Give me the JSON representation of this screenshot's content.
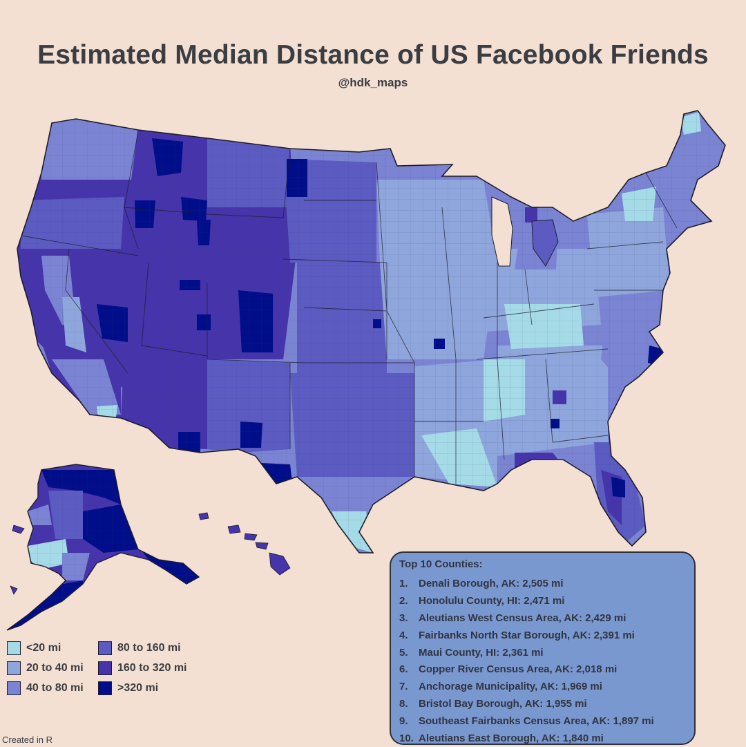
{
  "title": "Estimated Median Distance of US Facebook Friends",
  "subtitle": "@hdk_maps",
  "legend": [
    {
      "label": "<20 mi",
      "color": "#a5dbe6"
    },
    {
      "label": "20 to 40 mi",
      "color": "#8fa6dc"
    },
    {
      "label": "40 to 80 mi",
      "color": "#7b84d2"
    },
    {
      "label": "80 to 160 mi",
      "color": "#5c5bc1"
    },
    {
      "label": "160 to 320 mi",
      "color": "#4634ab"
    },
    {
      "label": ">320 mi",
      "color": "#000e8a"
    }
  ],
  "top10": {
    "title": "Top 10 Counties:",
    "items": [
      {
        "rank": "1.",
        "text": "Denali Borough, AK: 2,505 mi"
      },
      {
        "rank": "2.",
        "text": "Honolulu County, HI: 2,471 mi"
      },
      {
        "rank": "3.",
        "text": "Aleutians West Census Area, AK: 2,429 mi"
      },
      {
        "rank": "4.",
        "text": "Fairbanks North Star Borough, AK: 2,391 mi"
      },
      {
        "rank": "5.",
        "text": "Maui County, HI: 2,361 mi"
      },
      {
        "rank": "6.",
        "text": "Copper River Census Area, AK: 2,018 mi"
      },
      {
        "rank": "7.",
        "text": "Anchorage Municipality, AK: 1,969 mi"
      },
      {
        "rank": "8.",
        "text": "Bristol Bay Borough, AK: 1,955 mi"
      },
      {
        "rank": "9.",
        "text": "Southeast Fairbanks Census Area, AK: 1,897 mi"
      },
      {
        "rank": "10.",
        "text": "Aleutians East Borough, AK: 1,840 mi"
      }
    ]
  },
  "credit": "Created in R"
}
